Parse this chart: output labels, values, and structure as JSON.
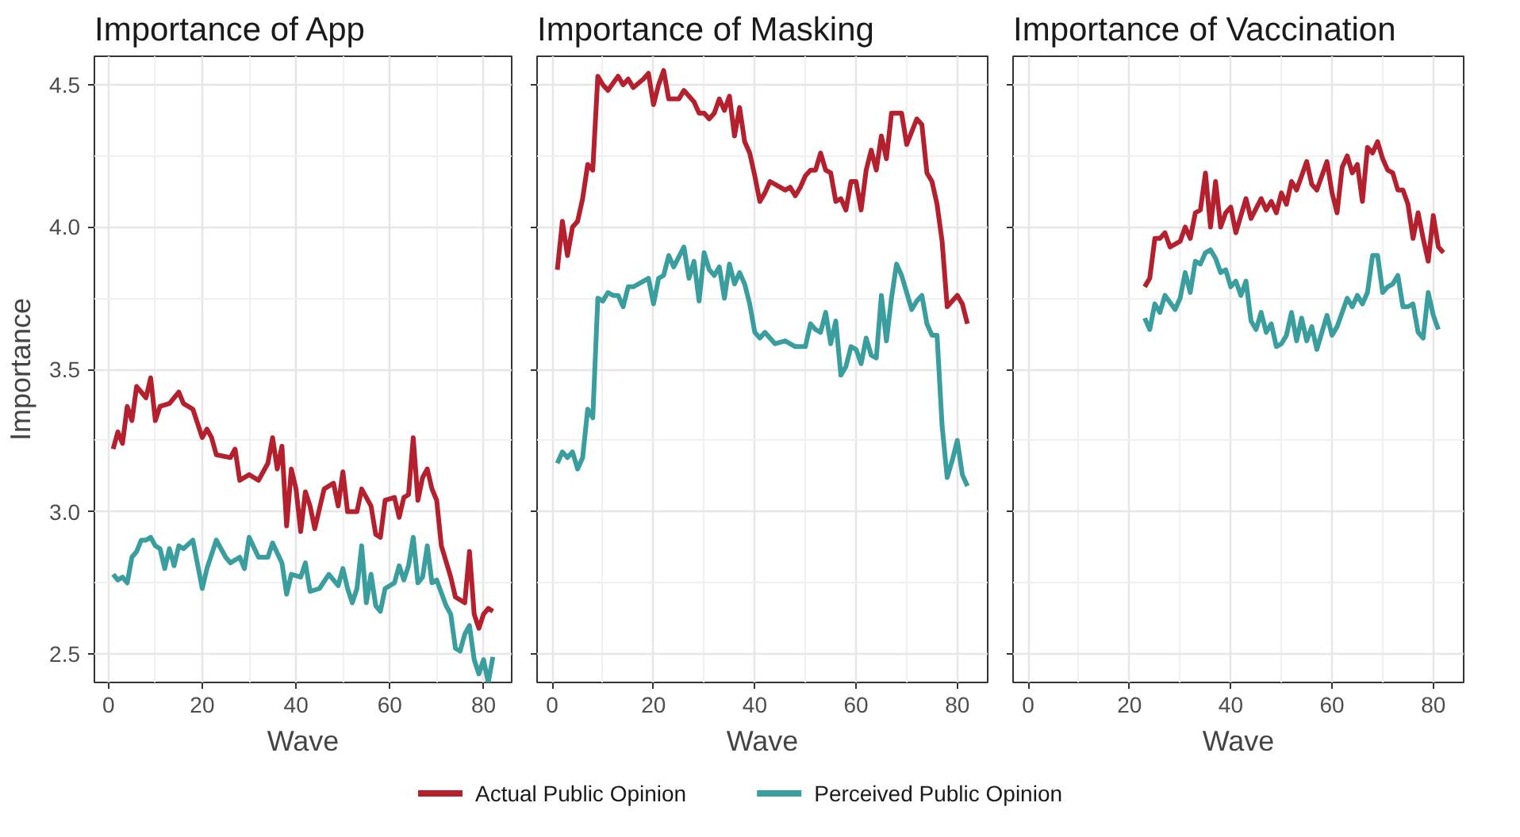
{
  "chart_data": [
    {
      "type": "line",
      "title": "Importance of App",
      "xlabel": "Wave",
      "ylabel": "Importance",
      "xlim": [
        -3,
        86
      ],
      "xticks": [
        0,
        20,
        40,
        60,
        80
      ],
      "ylim": [
        2.4,
        4.6
      ],
      "yticks": [
        2.5,
        {
          "value": 3.0,
          "label": "3.0"
        },
        3.5,
        {
          "value": 4.0,
          "label": "4.0"
        },
        4.5
      ],
      "grid": true,
      "legend": "bottom",
      "series": [
        {
          "name": "Actual Public Opinion",
          "color": "#b5202e",
          "x": [
            1,
            2,
            3,
            4,
            5,
            6,
            7,
            8,
            9,
            10,
            11,
            13,
            15,
            16,
            18,
            20,
            21,
            22,
            23,
            26,
            27,
            28,
            30,
            32,
            34,
            35,
            36,
            37,
            38,
            39,
            40,
            41,
            42,
            43,
            44,
            46,
            48,
            49,
            50,
            51,
            53,
            54,
            56,
            57,
            58,
            59,
            61,
            62,
            63,
            64,
            65,
            66,
            67,
            68,
            69,
            70,
            71,
            73,
            74,
            76,
            77,
            78,
            79,
            80,
            81,
            82
          ],
          "values": [
            3.22,
            3.28,
            3.24,
            3.37,
            3.32,
            3.44,
            3.42,
            3.4,
            3.47,
            3.32,
            3.37,
            3.38,
            3.42,
            3.38,
            3.36,
            3.26,
            3.29,
            3.26,
            3.2,
            3.19,
            3.22,
            3.11,
            3.13,
            3.11,
            3.17,
            3.26,
            3.15,
            3.23,
            2.95,
            3.15,
            3.08,
            2.93,
            3.07,
            3.02,
            2.94,
            3.08,
            3.1,
            3.02,
            3.14,
            3.0,
            3.0,
            3.08,
            3.02,
            2.92,
            2.91,
            3.04,
            3.05,
            2.98,
            3.05,
            3.06,
            3.26,
            3.04,
            3.12,
            3.15,
            3.08,
            3.04,
            2.88,
            2.77,
            2.7,
            2.68,
            2.86,
            2.64,
            2.59,
            2.64,
            2.66,
            2.65
          ]
        },
        {
          "name": "Perceived Public Opinion",
          "color": "#3a9e9e",
          "x": [
            1,
            2,
            3,
            4,
            5,
            6,
            7,
            8,
            9,
            10,
            11,
            12,
            13,
            14,
            15,
            16,
            18,
            20,
            21,
            23,
            25,
            26,
            28,
            29,
            30,
            32,
            34,
            35,
            37,
            38,
            39,
            41,
            42,
            43,
            45,
            47,
            49,
            50,
            51,
            52,
            53,
            54,
            55,
            56,
            57,
            58,
            59,
            61,
            62,
            63,
            64,
            65,
            66,
            67,
            68,
            69,
            70,
            72,
            73,
            74,
            75,
            76,
            77,
            78,
            79,
            80,
            81,
            82
          ],
          "values": [
            2.78,
            2.76,
            2.77,
            2.75,
            2.84,
            2.86,
            2.9,
            2.9,
            2.91,
            2.88,
            2.87,
            2.8,
            2.87,
            2.81,
            2.88,
            2.87,
            2.9,
            2.73,
            2.8,
            2.9,
            2.84,
            2.82,
            2.84,
            2.8,
            2.91,
            2.84,
            2.84,
            2.89,
            2.82,
            2.71,
            2.78,
            2.77,
            2.82,
            2.72,
            2.73,
            2.78,
            2.74,
            2.8,
            2.73,
            2.68,
            2.73,
            2.88,
            2.68,
            2.78,
            2.67,
            2.65,
            2.73,
            2.75,
            2.81,
            2.76,
            2.81,
            2.91,
            2.75,
            2.77,
            2.88,
            2.75,
            2.76,
            2.67,
            2.64,
            2.52,
            2.51,
            2.57,
            2.6,
            2.48,
            2.43,
            2.48,
            2.4,
            2.49
          ]
        }
      ]
    },
    {
      "type": "line",
      "title": "Importance of Masking",
      "xlabel": "Wave",
      "xlim": [
        -3,
        86
      ],
      "xticks": [
        0,
        20,
        40,
        60,
        80
      ],
      "ylim": [
        2.4,
        4.6
      ],
      "yticks": [
        2.5,
        3.0,
        3.5,
        4.0,
        4.5
      ],
      "grid": true,
      "tick_labels": "x",
      "series": [
        {
          "color": "#b5202e",
          "x": [
            1,
            2,
            3,
            4,
            5,
            6,
            7,
            8,
            9,
            10,
            11,
            13,
            14,
            15,
            16,
            18,
            19,
            20,
            21,
            22,
            23,
            25,
            26,
            28,
            29,
            30,
            31,
            32,
            33,
            34,
            35,
            36,
            37,
            38,
            39,
            40,
            41,
            42,
            43,
            45,
            46,
            47,
            48,
            49,
            50,
            51,
            52,
            53,
            54,
            55,
            56,
            57,
            58,
            59,
            60,
            61,
            62,
            63,
            64,
            65,
            66,
            67,
            68,
            69,
            70,
            72,
            73,
            74,
            75,
            76,
            77,
            78,
            79,
            80,
            81,
            82
          ],
          "values": [
            3.85,
            4.02,
            3.9,
            4.0,
            4.02,
            4.1,
            4.22,
            4.2,
            4.53,
            4.5,
            4.48,
            4.53,
            4.5,
            4.52,
            4.49,
            4.52,
            4.54,
            4.43,
            4.5,
            4.55,
            4.45,
            4.45,
            4.48,
            4.44,
            4.4,
            4.4,
            4.38,
            4.4,
            4.45,
            4.41,
            4.46,
            4.32,
            4.42,
            4.3,
            4.26,
            4.18,
            4.09,
            4.12,
            4.16,
            4.14,
            4.13,
            4.14,
            4.11,
            4.14,
            4.18,
            4.2,
            4.2,
            4.26,
            4.2,
            4.19,
            4.09,
            4.1,
            4.06,
            4.16,
            4.16,
            4.06,
            4.2,
            4.27,
            4.2,
            4.32,
            4.24,
            4.4,
            4.4,
            4.4,
            4.29,
            4.38,
            4.36,
            4.19,
            4.16,
            4.08,
            3.95,
            3.72,
            3.74,
            3.76,
            3.73,
            3.66
          ]
        },
        {
          "color": "#3a9e9e",
          "x": [
            1,
            2,
            3,
            4,
            5,
            6,
            7,
            8,
            9,
            10,
            11,
            12,
            13,
            14,
            15,
            16,
            17,
            19,
            20,
            21,
            22,
            23,
            24,
            26,
            27,
            28,
            29,
            30,
            31,
            32,
            33,
            34,
            35,
            36,
            37,
            38,
            39,
            40,
            41,
            42,
            43,
            44,
            46,
            48,
            50,
            51,
            52,
            53,
            54,
            55,
            56,
            57,
            58,
            59,
            60,
            61,
            62,
            63,
            64,
            65,
            66,
            67,
            68,
            69,
            70,
            71,
            72,
            73,
            74,
            75,
            76,
            77,
            78,
            79,
            80,
            81,
            82
          ],
          "values": [
            3.17,
            3.21,
            3.19,
            3.21,
            3.15,
            3.19,
            3.36,
            3.33,
            3.75,
            3.74,
            3.77,
            3.76,
            3.76,
            3.72,
            3.79,
            3.79,
            3.8,
            3.82,
            3.73,
            3.82,
            3.83,
            3.9,
            3.86,
            3.93,
            3.82,
            3.88,
            3.74,
            3.91,
            3.85,
            3.83,
            3.86,
            3.75,
            3.87,
            3.8,
            3.84,
            3.8,
            3.73,
            3.63,
            3.61,
            3.63,
            3.61,
            3.59,
            3.6,
            3.58,
            3.58,
            3.66,
            3.64,
            3.63,
            3.7,
            3.59,
            3.67,
            3.48,
            3.51,
            3.58,
            3.57,
            3.52,
            3.61,
            3.55,
            3.54,
            3.76,
            3.6,
            3.75,
            3.87,
            3.83,
            3.77,
            3.71,
            3.74,
            3.76,
            3.66,
            3.62,
            3.62,
            3.3,
            3.12,
            3.18,
            3.25,
            3.13,
            3.09
          ]
        }
      ]
    },
    {
      "type": "line",
      "title": "Importance of Vaccination",
      "xlabel": "Wave",
      "xlim": [
        -3,
        86
      ],
      "xticks": [
        0,
        20,
        40,
        60,
        80
      ],
      "ylim": [
        2.4,
        4.6
      ],
      "yticks": [
        2.5,
        3.0,
        3.5,
        4.0,
        4.5
      ],
      "grid": true,
      "tick_labels": "x",
      "series": [
        {
          "color": "#b5202e",
          "x": [
            23,
            24,
            25,
            26,
            27,
            28,
            30,
            31,
            32,
            33,
            34,
            35,
            36,
            37,
            38,
            39,
            40,
            41,
            42,
            43,
            44,
            46,
            47,
            48,
            49,
            50,
            51,
            52,
            53,
            55,
            56,
            57,
            59,
            60,
            61,
            62,
            63,
            64,
            65,
            66,
            67,
            68,
            69,
            70,
            71,
            72,
            73,
            74,
            75,
            76,
            77,
            78,
            79,
            80,
            81,
            82
          ],
          "values": [
            3.79,
            3.82,
            3.96,
            3.96,
            3.98,
            3.93,
            3.95,
            4.0,
            3.96,
            4.05,
            4.06,
            4.19,
            4.0,
            4.16,
            4.0,
            4.05,
            4.07,
            3.98,
            4.04,
            4.1,
            4.03,
            4.1,
            4.06,
            4.09,
            4.05,
            4.12,
            4.08,
            4.16,
            4.13,
            4.23,
            4.15,
            4.13,
            4.23,
            4.12,
            4.05,
            4.21,
            4.25,
            4.19,
            4.22,
            4.09,
            4.28,
            4.26,
            4.3,
            4.24,
            4.2,
            4.19,
            4.13,
            4.13,
            4.08,
            3.96,
            4.05,
            3.96,
            3.88,
            4.04,
            3.93,
            3.91
          ]
        },
        {
          "color": "#3a9e9e",
          "x": [
            23,
            24,
            25,
            26,
            27,
            29,
            30,
            31,
            32,
            33,
            34,
            35,
            36,
            37,
            38,
            39,
            40,
            41,
            42,
            43,
            44,
            45,
            46,
            47,
            48,
            49,
            50,
            51,
            52,
            53,
            54,
            55,
            56,
            57,
            58,
            59,
            60,
            61,
            62,
            63,
            64,
            65,
            66,
            67,
            68,
            69,
            70,
            71,
            72,
            73,
            74,
            75,
            76,
            77,
            78,
            79,
            80,
            81
          ],
          "values": [
            3.68,
            3.64,
            3.73,
            3.7,
            3.76,
            3.71,
            3.75,
            3.84,
            3.77,
            3.88,
            3.87,
            3.91,
            3.92,
            3.89,
            3.84,
            3.85,
            3.79,
            3.81,
            3.76,
            3.81,
            3.67,
            3.64,
            3.7,
            3.63,
            3.66,
            3.58,
            3.59,
            3.62,
            3.7,
            3.6,
            3.68,
            3.6,
            3.65,
            3.57,
            3.63,
            3.69,
            3.62,
            3.65,
            3.7,
            3.75,
            3.72,
            3.76,
            3.73,
            3.77,
            3.9,
            3.9,
            3.77,
            3.79,
            3.8,
            3.83,
            3.72,
            3.72,
            3.73,
            3.63,
            3.61,
            3.77,
            3.69,
            3.64
          ]
        }
      ]
    }
  ]
}
